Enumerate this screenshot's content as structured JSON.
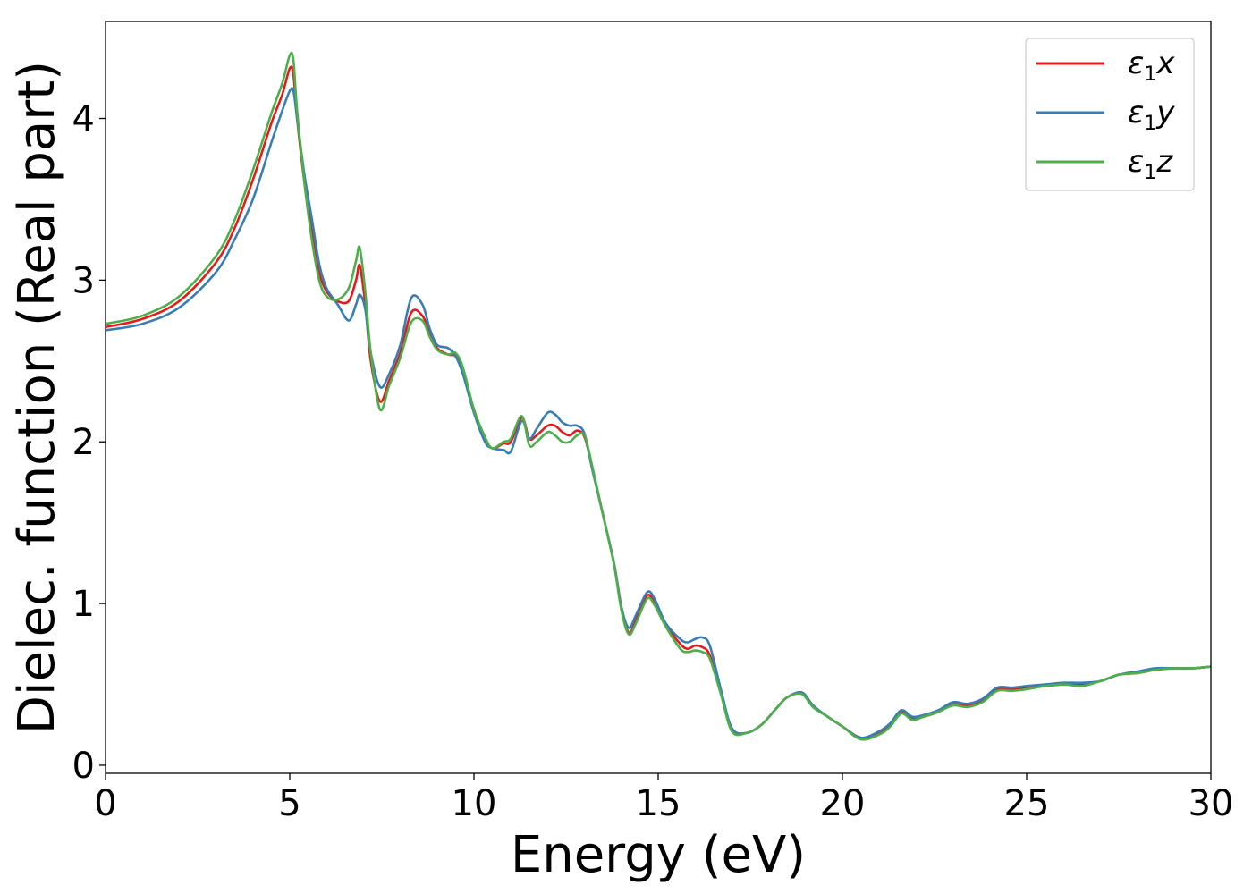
{
  "chart_data": {
    "type": "line",
    "title": "",
    "xlabel": "Energy (eV)",
    "ylabel": "Dielec. function (Real part)",
    "xlim": [
      0,
      30
    ],
    "ylim": [
      -0.05,
      4.6
    ],
    "xticks": [
      0,
      5,
      10,
      15,
      20,
      25,
      30
    ],
    "yticks": [
      0,
      1,
      2,
      3,
      4
    ],
    "grid": false,
    "legend_position": "top-right",
    "series": [
      {
        "name": "ε1x",
        "legend_base": "ε",
        "legend_sub": "1",
        "legend_var": "x",
        "color": "#e41a1c",
        "x": [
          0,
          1,
          2,
          3,
          3.5,
          4,
          4.5,
          4.8,
          5.0,
          5.1,
          5.2,
          5.4,
          5.6,
          5.8,
          6.0,
          6.3,
          6.6,
          6.8,
          6.9,
          7.05,
          7.2,
          7.45,
          7.7,
          8.0,
          8.3,
          8.6,
          8.8,
          9.0,
          9.3,
          9.5,
          9.7,
          10.0,
          10.3,
          10.5,
          10.8,
          11.0,
          11.3,
          11.5,
          11.7,
          12.0,
          12.2,
          12.4,
          12.6,
          12.8,
          13.0,
          13.2,
          13.5,
          13.8,
          14.0,
          14.2,
          14.4,
          14.7,
          14.9,
          15.2,
          15.6,
          15.8,
          16.0,
          16.2,
          16.4,
          16.7,
          17.0,
          17.4,
          17.8,
          18.2,
          18.5,
          18.9,
          19.2,
          19.6,
          20.0,
          20.5,
          21.0,
          21.3,
          21.6,
          21.9,
          22.2,
          22.6,
          23.0,
          23.4,
          23.8,
          24.2,
          24.6,
          25.0,
          25.5,
          26.0,
          26.5,
          27.0,
          27.5,
          28.0,
          28.5,
          29.0,
          29.5,
          30.0
        ],
        "y": [
          2.71,
          2.76,
          2.87,
          3.11,
          3.32,
          3.62,
          3.97,
          4.15,
          4.31,
          4.27,
          4.0,
          3.6,
          3.3,
          3.05,
          2.93,
          2.87,
          2.87,
          3.0,
          3.09,
          2.85,
          2.5,
          2.25,
          2.38,
          2.55,
          2.8,
          2.78,
          2.67,
          2.58,
          2.54,
          2.53,
          2.44,
          2.2,
          2.02,
          1.96,
          1.99,
          2.0,
          2.15,
          2.02,
          2.04,
          2.1,
          2.1,
          2.06,
          2.04,
          2.07,
          2.03,
          1.85,
          1.55,
          1.25,
          0.98,
          0.82,
          0.9,
          1.05,
          1.0,
          0.87,
          0.75,
          0.72,
          0.74,
          0.73,
          0.68,
          0.45,
          0.22,
          0.2,
          0.25,
          0.35,
          0.42,
          0.45,
          0.37,
          0.3,
          0.24,
          0.17,
          0.2,
          0.25,
          0.33,
          0.29,
          0.3,
          0.33,
          0.38,
          0.37,
          0.4,
          0.47,
          0.47,
          0.48,
          0.49,
          0.5,
          0.5,
          0.52,
          0.56,
          0.57,
          0.59,
          0.6,
          0.6,
          0.61
        ]
      },
      {
        "name": "ε1y",
        "legend_base": "ε",
        "legend_sub": "1",
        "legend_var": "y",
        "color": "#377eb8",
        "x": [
          0,
          1,
          2,
          3,
          3.5,
          4,
          4.5,
          4.8,
          5.0,
          5.1,
          5.2,
          5.4,
          5.6,
          5.8,
          6.0,
          6.3,
          6.6,
          6.8,
          6.9,
          7.05,
          7.2,
          7.45,
          7.7,
          8.0,
          8.3,
          8.6,
          8.8,
          9.0,
          9.3,
          9.5,
          9.7,
          10.0,
          10.3,
          10.5,
          10.8,
          11.0,
          11.3,
          11.5,
          11.7,
          12.0,
          12.2,
          12.4,
          12.6,
          12.8,
          13.0,
          13.2,
          13.5,
          13.8,
          14.0,
          14.2,
          14.4,
          14.7,
          14.9,
          15.2,
          15.6,
          15.8,
          16.0,
          16.2,
          16.4,
          16.7,
          17.0,
          17.4,
          17.8,
          18.2,
          18.5,
          18.9,
          19.2,
          19.6,
          20.0,
          20.5,
          21.0,
          21.3,
          21.6,
          21.9,
          22.2,
          22.6,
          23.0,
          23.4,
          23.8,
          24.2,
          24.6,
          25.0,
          25.5,
          26.0,
          26.5,
          27.0,
          27.5,
          28.0,
          28.5,
          29.0,
          29.5,
          30.0
        ],
        "y": [
          2.69,
          2.73,
          2.83,
          3.05,
          3.25,
          3.5,
          3.85,
          4.05,
          4.17,
          4.17,
          4.0,
          3.65,
          3.38,
          3.1,
          2.95,
          2.85,
          2.75,
          2.85,
          2.91,
          2.82,
          2.55,
          2.34,
          2.42,
          2.6,
          2.89,
          2.85,
          2.7,
          2.6,
          2.58,
          2.53,
          2.42,
          2.18,
          2.0,
          1.96,
          1.95,
          1.94,
          2.13,
          2.02,
          2.08,
          2.18,
          2.17,
          2.12,
          2.1,
          2.1,
          2.05,
          1.84,
          1.55,
          1.25,
          0.98,
          0.85,
          0.93,
          1.07,
          1.03,
          0.88,
          0.78,
          0.76,
          0.78,
          0.79,
          0.74,
          0.47,
          0.23,
          0.2,
          0.25,
          0.35,
          0.42,
          0.45,
          0.37,
          0.3,
          0.24,
          0.17,
          0.21,
          0.26,
          0.34,
          0.3,
          0.31,
          0.34,
          0.39,
          0.38,
          0.41,
          0.48,
          0.48,
          0.49,
          0.5,
          0.51,
          0.51,
          0.52,
          0.56,
          0.58,
          0.6,
          0.6,
          0.6,
          0.61
        ]
      },
      {
        "name": "ε1z",
        "legend_base": "ε",
        "legend_sub": "1",
        "legend_var": "z",
        "color": "#4daf4a",
        "x": [
          0,
          1,
          2,
          3,
          3.5,
          4,
          4.5,
          4.8,
          5.0,
          5.1,
          5.2,
          5.4,
          5.6,
          5.8,
          6.0,
          6.3,
          6.6,
          6.8,
          6.9,
          7.05,
          7.2,
          7.45,
          7.7,
          8.0,
          8.3,
          8.6,
          8.8,
          9.0,
          9.3,
          9.5,
          9.7,
          10.0,
          10.3,
          10.5,
          10.8,
          11.0,
          11.3,
          11.5,
          11.7,
          12.0,
          12.2,
          12.4,
          12.6,
          12.8,
          13.0,
          13.2,
          13.5,
          13.8,
          14.0,
          14.2,
          14.4,
          14.7,
          14.9,
          15.2,
          15.6,
          15.8,
          16.0,
          16.2,
          16.4,
          16.7,
          17.0,
          17.4,
          17.8,
          18.2,
          18.5,
          18.9,
          19.2,
          19.6,
          20.0,
          20.5,
          21.0,
          21.3,
          21.6,
          21.9,
          22.2,
          22.6,
          23.0,
          23.4,
          23.8,
          24.2,
          24.6,
          25.0,
          25.5,
          26.0,
          26.5,
          27.0,
          27.5,
          28.0,
          28.5,
          29.0,
          29.5,
          30.0
        ],
        "y": [
          2.73,
          2.78,
          2.9,
          3.15,
          3.37,
          3.68,
          4.03,
          4.22,
          4.39,
          4.36,
          4.05,
          3.6,
          3.25,
          3.0,
          2.9,
          2.88,
          2.95,
          3.12,
          3.2,
          2.93,
          2.55,
          2.2,
          2.35,
          2.52,
          2.74,
          2.75,
          2.65,
          2.57,
          2.54,
          2.55,
          2.46,
          2.2,
          2.03,
          1.96,
          2.0,
          2.02,
          2.16,
          1.98,
          2.0,
          2.06,
          2.04,
          2.0,
          2.0,
          2.04,
          2.04,
          1.86,
          1.55,
          1.24,
          0.96,
          0.81,
          0.88,
          1.03,
          0.99,
          0.86,
          0.72,
          0.7,
          0.71,
          0.7,
          0.66,
          0.44,
          0.21,
          0.2,
          0.25,
          0.35,
          0.42,
          0.44,
          0.36,
          0.3,
          0.24,
          0.16,
          0.19,
          0.24,
          0.32,
          0.28,
          0.3,
          0.33,
          0.37,
          0.36,
          0.39,
          0.46,
          0.46,
          0.47,
          0.49,
          0.5,
          0.49,
          0.52,
          0.56,
          0.57,
          0.59,
          0.6,
          0.6,
          0.61
        ]
      }
    ]
  }
}
